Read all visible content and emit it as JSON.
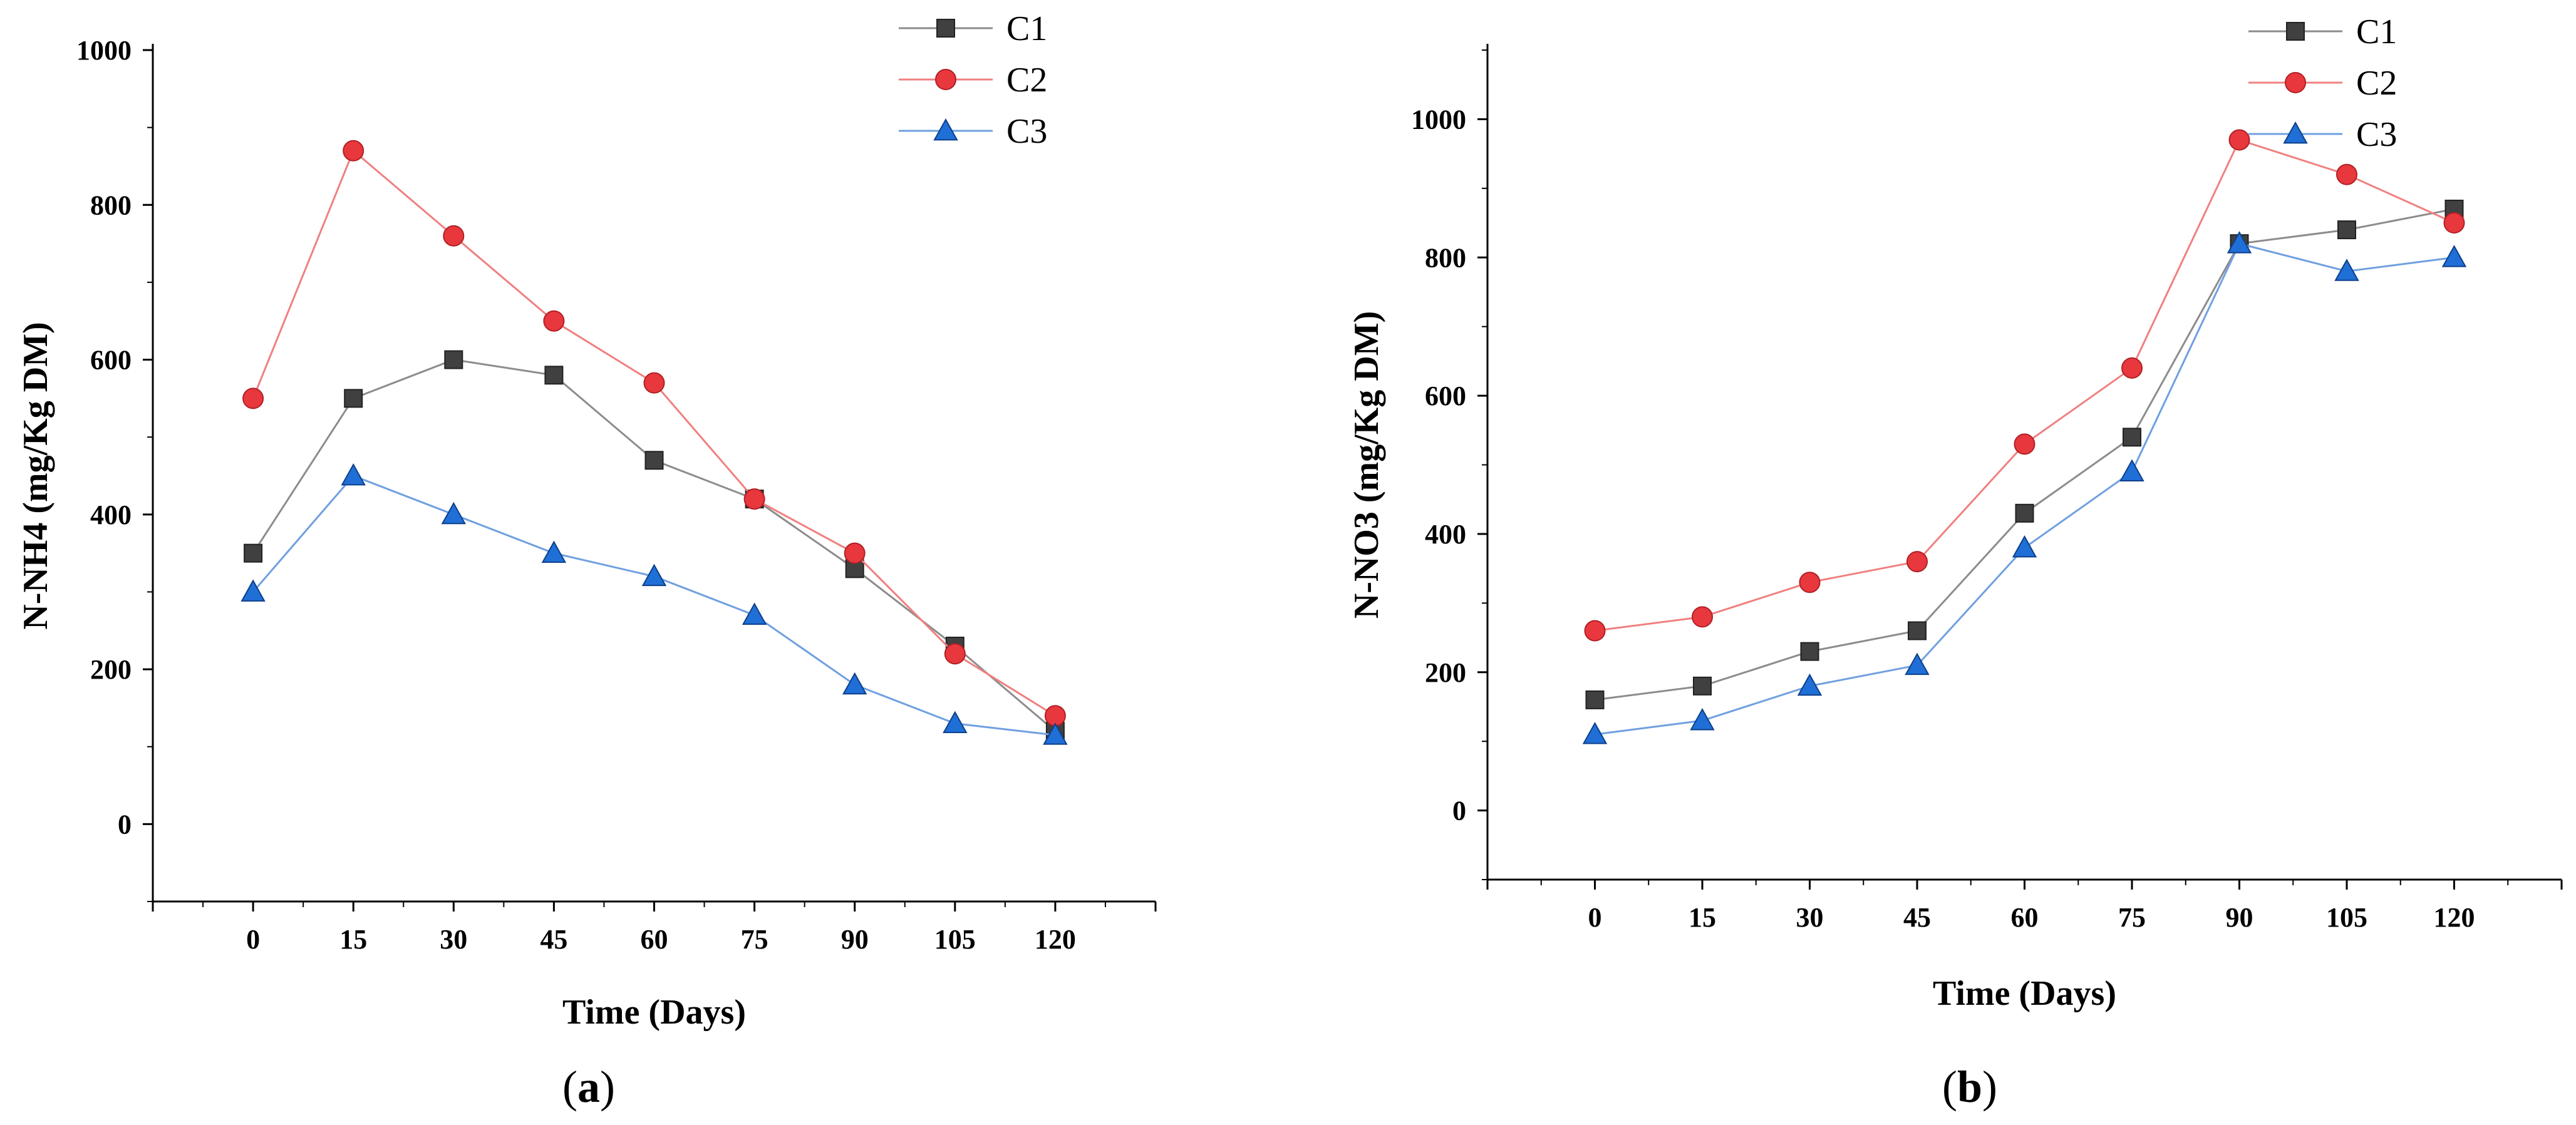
{
  "chart_data": [
    {
      "type": "line",
      "caption": {
        "open": "(",
        "letter": "a",
        "close": ")"
      },
      "xlabel": "Time (Days)",
      "ylabel": "N-NH4 (mg/Kg DM)",
      "x": [
        0,
        15,
        30,
        45,
        60,
        75,
        90,
        105,
        120
      ],
      "xticks": [
        "0",
        "15",
        "30",
        "45",
        "60",
        "75",
        "90",
        "105",
        "120"
      ],
      "xlim": [
        -15,
        135
      ],
      "ylim": [
        -100,
        1000
      ],
      "yticks": [
        0,
        200,
        400,
        600,
        800,
        1000
      ],
      "ytick_labels": [
        "0",
        "200",
        "400",
        "600",
        "800",
        "1000"
      ],
      "series": [
        {
          "name": "C1",
          "color": "#404040",
          "line_color": "#8c8c8c",
          "marker": "square",
          "values": [
            350,
            550,
            600,
            580,
            470,
            420,
            330,
            230,
            120
          ]
        },
        {
          "name": "C2",
          "color": "#e8383d",
          "line_color": "#f08080",
          "marker": "circle",
          "values": [
            550,
            870,
            760,
            650,
            570,
            420,
            350,
            220,
            140
          ]
        },
        {
          "name": "C3",
          "color": "#1f6fd6",
          "line_color": "#6fa0e0",
          "marker": "triangle",
          "values": [
            300,
            450,
            400,
            350,
            320,
            270,
            180,
            130,
            115
          ]
        }
      ]
    },
    {
      "type": "line",
      "caption": {
        "open": "(",
        "letter": "b",
        "close": ")"
      },
      "xlabel": "Time (Days)",
      "ylabel": "N-NO3 (mg/Kg DM)",
      "x": [
        0,
        15,
        30,
        45,
        60,
        75,
        90,
        105,
        120
      ],
      "xticks": [
        "0",
        "15",
        "30",
        "45",
        "60",
        "75",
        "90",
        "105",
        "120"
      ],
      "xlim": [
        -15,
        135
      ],
      "ylim": [
        -100,
        1100
      ],
      "yticks": [
        0,
        200,
        400,
        600,
        800,
        1000
      ],
      "ytick_labels": [
        "0",
        "200",
        "400",
        "600",
        "800",
        "1000"
      ],
      "series": [
        {
          "name": "C1",
          "color": "#404040",
          "line_color": "#8c8c8c",
          "marker": "square",
          "values": [
            160,
            180,
            230,
            260,
            430,
            540,
            820,
            840,
            870
          ]
        },
        {
          "name": "C2",
          "color": "#e8383d",
          "line_color": "#f08080",
          "marker": "circle",
          "values": [
            260,
            280,
            330,
            360,
            530,
            640,
            970,
            920,
            850
          ]
        },
        {
          "name": "C3",
          "color": "#1f6fd6",
          "line_color": "#6fa0e0",
          "marker": "triangle",
          "values": [
            110,
            130,
            180,
            210,
            380,
            490,
            820,
            780,
            800
          ]
        }
      ]
    }
  ]
}
